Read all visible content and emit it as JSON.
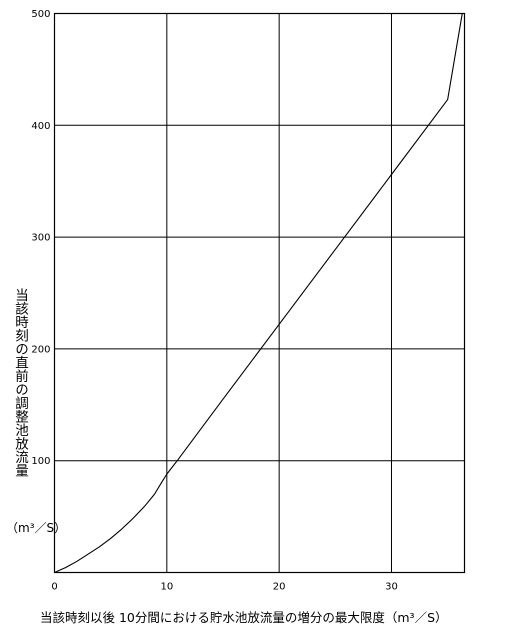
{
  "chart_data": {
    "type": "line",
    "title": "",
    "xlabel": "当該時刻以後 10分間における貯水池放流量の増分の最大限度（m³／S）",
    "ylabel": "当該時刻の直前の調整池放流量",
    "ylabel_unit": "（m³／S）",
    "xlim": [
      0,
      36.5
    ],
    "ylim": [
      0,
      500
    ],
    "xticks": [
      0,
      10,
      20,
      30
    ],
    "yticks": [
      100,
      200,
      300,
      400,
      500
    ],
    "grid": true,
    "legend": "none",
    "line_color": "#000000",
    "series": [
      {
        "x": [
          0,
          1,
          2,
          3,
          4,
          5,
          6,
          7,
          8,
          8.9,
          9.5,
          10,
          11,
          15,
          20,
          25,
          30,
          35,
          36.3
        ],
        "y": [
          0,
          4.5,
          10,
          16.5,
          23,
          30.5,
          39,
          48.5,
          59,
          70,
          80,
          88,
          101,
          155,
          222,
          289,
          356,
          423,
          500
        ]
      }
    ]
  }
}
